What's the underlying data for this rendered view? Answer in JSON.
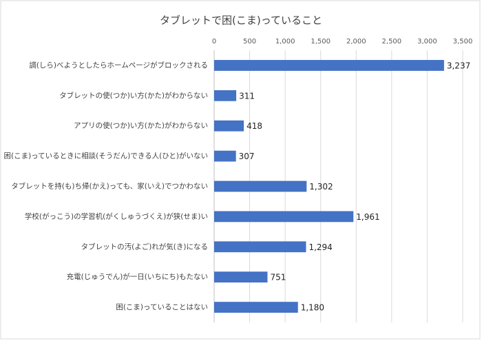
{
  "chart_data": {
    "type": "bar",
    "orientation": "horizontal",
    "title": "タブレットで困(こま)っていること",
    "categories": [
      "調(しら)べようとしたらホームページがブロックされる",
      "タブレットの使(つか)い方(かた)がわからない",
      "アプリの使(つか)い方(かた)がわからない",
      "困(こま)っているときに相談(そうだん)できる人(ひと)がいない",
      "タブレットを持(も)ち帰(かえ)っても、家(いえ)でつかわない",
      "学校(がっこう)の学習机(がくしゅうづくえ)が狭(せま)い",
      "タブレットの汚(よご)れが気(き)になる",
      "充電(じゅうでん)が一日(いちにち)もたない",
      "困(こま)っていることはない"
    ],
    "values": [
      3237,
      311,
      418,
      307,
      1302,
      1961,
      1294,
      751,
      1180
    ],
    "value_labels": [
      "3,237",
      "311",
      "418",
      "307",
      "1,302",
      "1,961",
      "1,294",
      "751",
      "1,180"
    ],
    "color": "#4472c4",
    "xlim": [
      0,
      3500
    ],
    "xticks": [
      0,
      500,
      {
        "value": 1000,
        "label": "1,000"
      },
      {
        "value": 1500,
        "label": "1,500"
      },
      {
        "value": 2000,
        "label": "2,000"
      },
      {
        "value": 2500,
        "label": "2,500"
      },
      {
        "value": 3000,
        "label": "3,000"
      },
      {
        "value": 3500,
        "label": "3,500"
      }
    ],
    "grid": true
  }
}
